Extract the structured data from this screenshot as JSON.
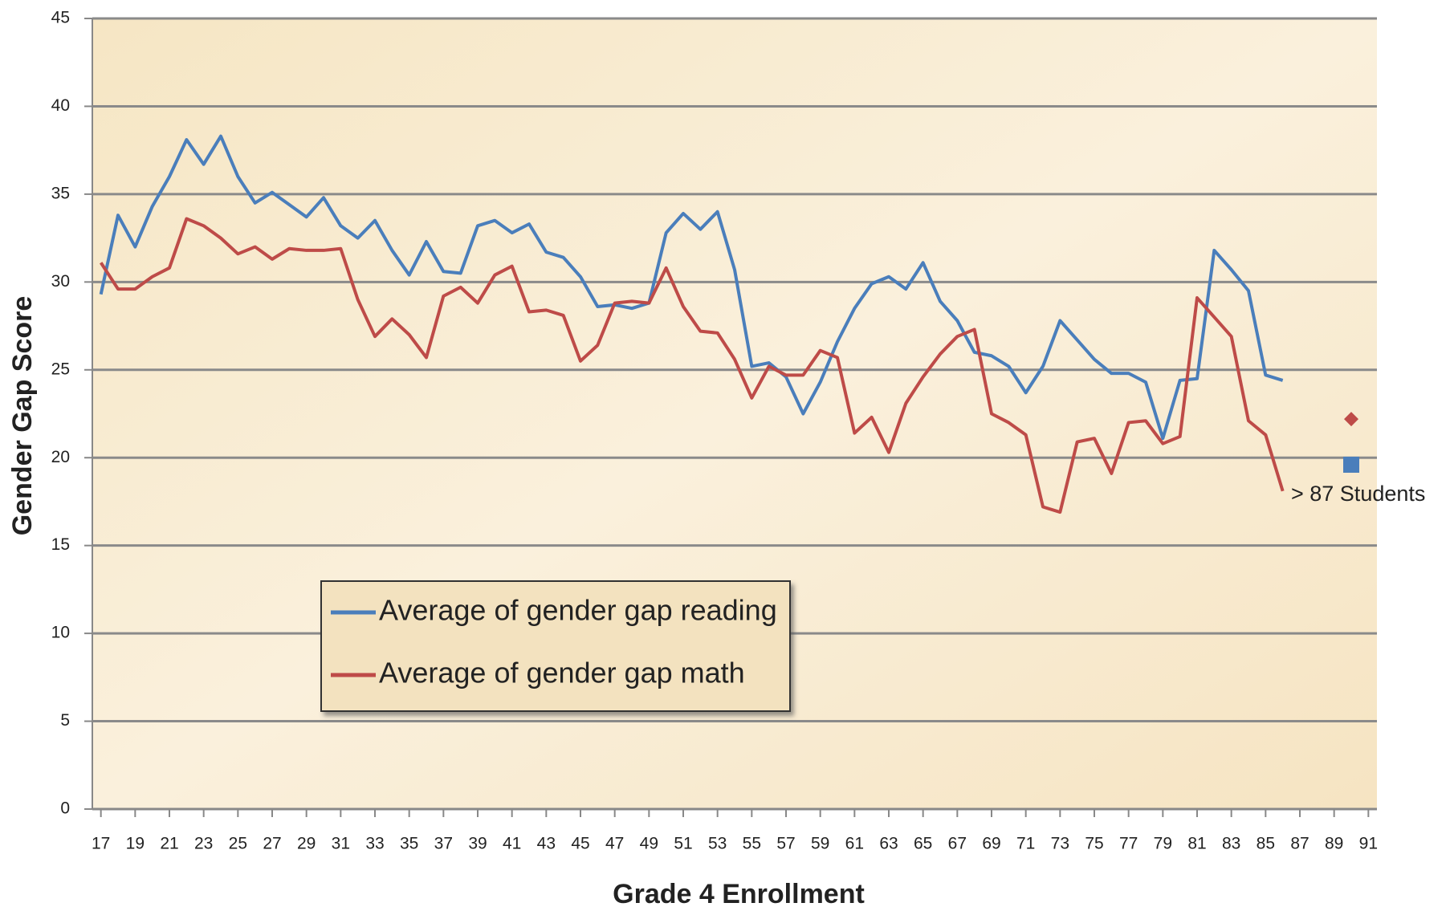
{
  "chart_data": {
    "type": "line",
    "xlabel": "Grade 4 Enrollment",
    "ylabel": "Gender Gap Score",
    "x": [
      17,
      18,
      19,
      20,
      21,
      22,
      23,
      24,
      25,
      26,
      27,
      28,
      29,
      30,
      31,
      32,
      33,
      34,
      35,
      36,
      37,
      38,
      39,
      40,
      41,
      42,
      43,
      44,
      45,
      46,
      47,
      48,
      49,
      50,
      51,
      52,
      53,
      54,
      55,
      56,
      57,
      58,
      59,
      60,
      61,
      62,
      63,
      64,
      65,
      66,
      67,
      68,
      69,
      70,
      71,
      72,
      73,
      74,
      75,
      76,
      77,
      78,
      79,
      80,
      81,
      82,
      83,
      84,
      85,
      86
    ],
    "series": [
      {
        "name": "Average of gender gap reading",
        "color": "#4a7ebb",
        "values": [
          29.3,
          33.8,
          32.0,
          34.3,
          36.0,
          38.1,
          36.7,
          38.3,
          36.0,
          34.5,
          35.1,
          34.4,
          33.7,
          34.8,
          33.2,
          32.5,
          33.5,
          31.8,
          30.4,
          32.3,
          30.6,
          30.5,
          33.2,
          33.5,
          32.8,
          33.3,
          31.7,
          31.4,
          30.3,
          28.6,
          28.7,
          28.5,
          28.8,
          32.8,
          33.9,
          33.0,
          34.0,
          30.7,
          25.2,
          25.4,
          24.6,
          22.5,
          24.3,
          26.6,
          28.5,
          29.9,
          30.3,
          29.6,
          31.1,
          28.9,
          27.8,
          26.0,
          25.8,
          25.2,
          23.7,
          25.2,
          27.8,
          26.7,
          25.6,
          24.8,
          24.8,
          24.3,
          21.1,
          24.4,
          24.5,
          31.8,
          30.7,
          29.5,
          24.7,
          24.4
        ]
      },
      {
        "name": "Average of gender gap math",
        "color": "#be4b48",
        "values": [
          31.1,
          29.6,
          29.6,
          30.3,
          30.8,
          33.6,
          33.2,
          32.5,
          31.6,
          32.0,
          31.3,
          31.9,
          31.8,
          31.8,
          31.9,
          29.0,
          26.9,
          27.9,
          27.0,
          25.7,
          29.2,
          29.7,
          28.8,
          30.4,
          30.9,
          28.3,
          28.4,
          28.1,
          25.5,
          26.4,
          28.8,
          28.9,
          28.8,
          30.8,
          28.6,
          27.2,
          27.1,
          25.6,
          23.4,
          25.2,
          24.7,
          24.7,
          26.1,
          25.7,
          21.4,
          22.3,
          20.3,
          23.1,
          24.6,
          25.9,
          26.9,
          27.3,
          22.5,
          22.0,
          21.3,
          17.2,
          16.9,
          20.9,
          21.1,
          19.1,
          22.0,
          22.1,
          20.8,
          21.2,
          29.1,
          28.0,
          26.9,
          22.1,
          21.3,
          18.1
        ]
      }
    ],
    "points": [
      {
        "x": 90,
        "value": 22.2,
        "color": "#be4b48"
      },
      {
        "x": 90,
        "value": 19.6,
        "color": "#4a7ebb"
      }
    ],
    "annotation": "> 87 Students",
    "xlim": [
      16.5,
      91.5
    ],
    "xticks": [
      17,
      19,
      21,
      23,
      25,
      27,
      29,
      31,
      33,
      35,
      37,
      39,
      41,
      43,
      45,
      47,
      49,
      51,
      53,
      55,
      57,
      59,
      61,
      63,
      65,
      67,
      69,
      71,
      73,
      75,
      77,
      79,
      81,
      83,
      85,
      87,
      89,
      91
    ],
    "ylim": [
      0,
      45
    ],
    "yticks": [
      0,
      5,
      10,
      15,
      20,
      25,
      30,
      35,
      40,
      45
    ],
    "grid": true
  }
}
